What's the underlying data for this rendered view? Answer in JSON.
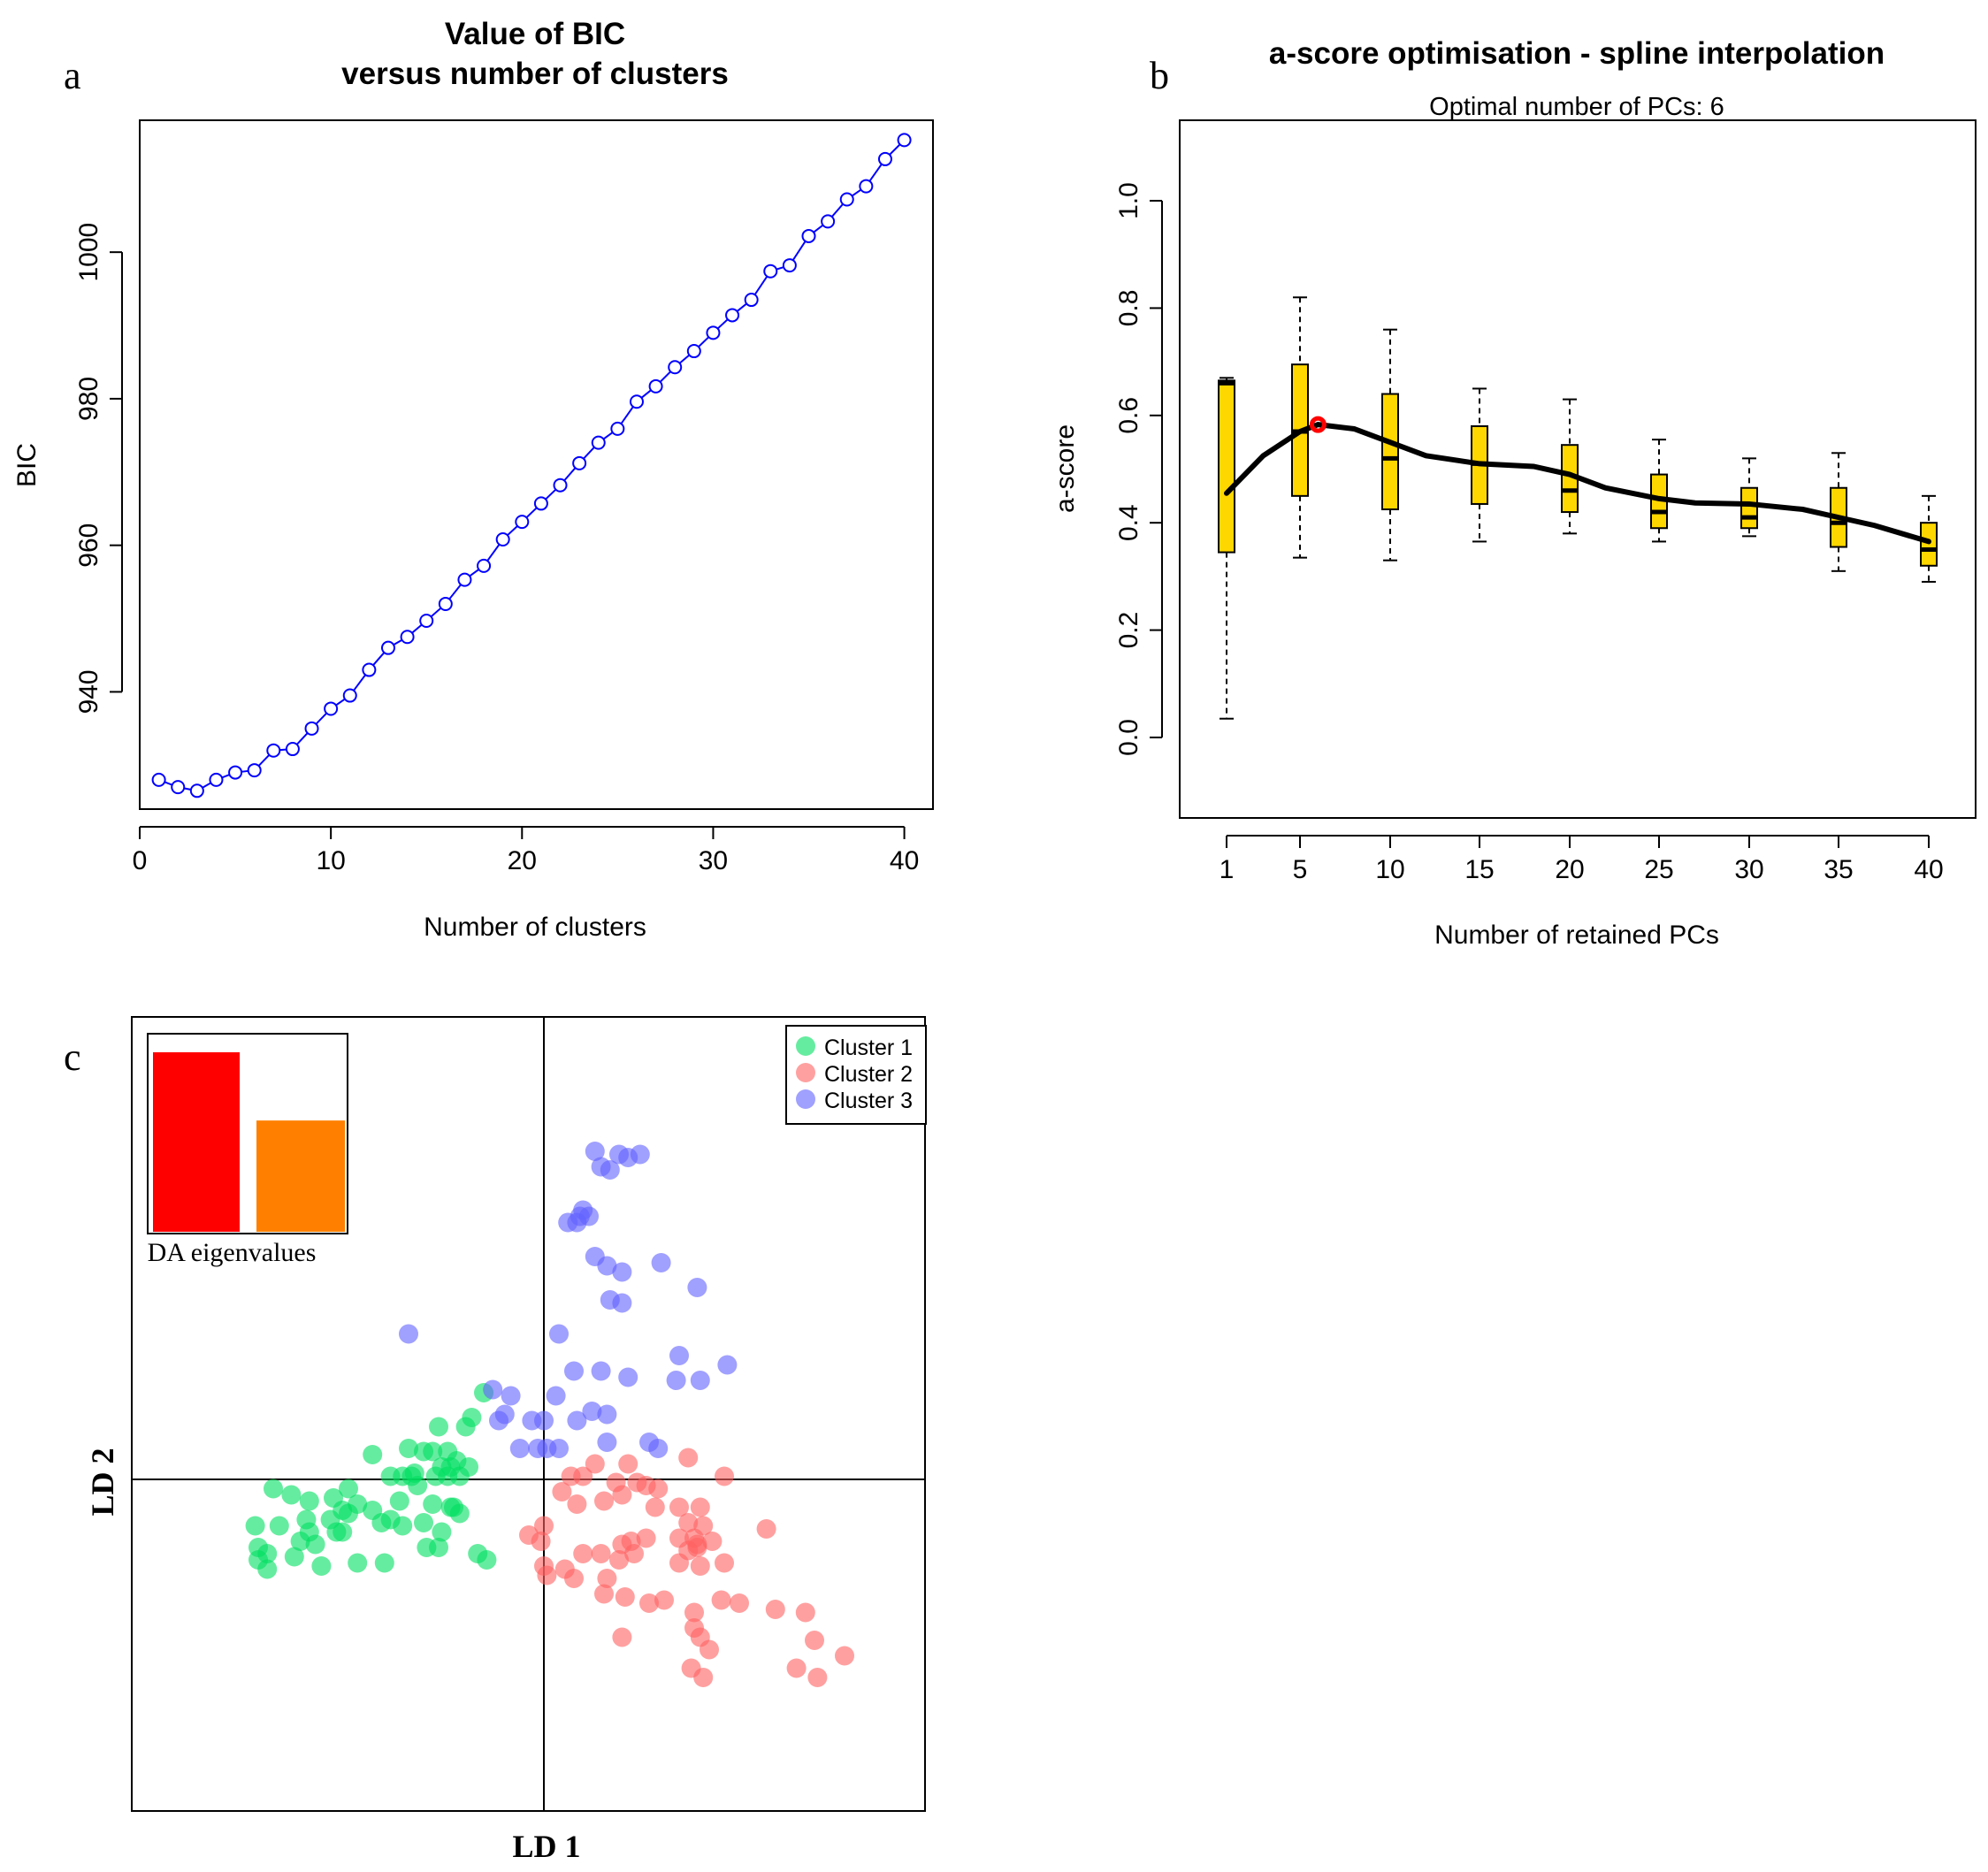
{
  "panel_labels": {
    "a": "a",
    "b": "b",
    "c": "c"
  },
  "chart_data": [
    {
      "type": "line",
      "panel": "a",
      "title_line1": "Value of BIC",
      "title_line2": "versus number of clusters",
      "xlabel": "Number of clusters",
      "ylabel": "BIC",
      "xlim": [
        0,
        41.5
      ],
      "ylim": [
        924,
        1018
      ],
      "xticks": [
        0,
        10,
        20,
        30,
        40
      ],
      "yticks": [
        940,
        960,
        980,
        1000
      ],
      "color": "#0000ff",
      "x": [
        1,
        2,
        3,
        4,
        5,
        6,
        7,
        8,
        9,
        10,
        11,
        12,
        13,
        14,
        15,
        16,
        17,
        18,
        19,
        20,
        21,
        22,
        23,
        24,
        25,
        26,
        27,
        28,
        29,
        30,
        31,
        32,
        33,
        34,
        35,
        36,
        37,
        38,
        39,
        40
      ],
      "values": [
        928,
        927,
        926.5,
        928,
        929,
        929.3,
        932,
        932.2,
        935,
        937.7,
        939.5,
        943,
        946,
        947.5,
        949.7,
        952,
        955.3,
        957.2,
        960.8,
        963.2,
        965.7,
        968.2,
        971.2,
        974,
        975.9,
        979.6,
        981.7,
        984.3,
        986.5,
        989,
        991.4,
        993.5,
        997.4,
        998.2,
        1002.2,
        1004.2,
        1007.2,
        1009,
        1012.7,
        1015.3
      ]
    },
    {
      "type": "box",
      "panel": "b",
      "title": "a-score optimisation - spline interpolation",
      "subtitle": "Optimal number of PCs: 6",
      "xlabel": "Number of retained PCs",
      "ylabel": "a-score",
      "ylim": [
        -0.15,
        1.15
      ],
      "yticks": [
        "0.0",
        "0.2",
        "0.4",
        "0.6",
        "0.8",
        "1.0"
      ],
      "box_color": "#ffd700",
      "categories": [
        "1",
        "5",
        "10",
        "15",
        "20",
        "25",
        "30",
        "35",
        "40"
      ],
      "boxes": [
        {
          "pc": 1,
          "min": 0.035,
          "q1": 0.345,
          "median": 0.66,
          "q3": 0.665,
          "max": 0.67
        },
        {
          "pc": 5,
          "min": 0.335,
          "q1": 0.45,
          "median": 0.57,
          "q3": 0.695,
          "max": 0.82
        },
        {
          "pc": 10,
          "min": 0.33,
          "q1": 0.425,
          "median": 0.52,
          "q3": 0.64,
          "max": 0.76
        },
        {
          "pc": 15,
          "min": 0.365,
          "q1": 0.435,
          "median": 0.51,
          "q3": 0.58,
          "max": 0.65
        },
        {
          "pc": 20,
          "min": 0.38,
          "q1": 0.42,
          "median": 0.46,
          "q3": 0.545,
          "max": 0.63
        },
        {
          "pc": 25,
          "min": 0.365,
          "q1": 0.39,
          "median": 0.42,
          "q3": 0.49,
          "max": 0.555
        },
        {
          "pc": 30,
          "min": 0.375,
          "q1": 0.39,
          "median": 0.41,
          "q3": 0.465,
          "max": 0.52
        },
        {
          "pc": 35,
          "min": 0.31,
          "q1": 0.355,
          "median": 0.4,
          "q3": 0.465,
          "max": 0.53
        },
        {
          "pc": 40,
          "min": 0.29,
          "q1": 0.32,
          "median": 0.35,
          "q3": 0.4,
          "max": 0.45
        }
      ],
      "spline": {
        "x": [
          1,
          3,
          5,
          6,
          8,
          10,
          12,
          15,
          18,
          20,
          22,
          25,
          27,
          30,
          33,
          35,
          37,
          40
        ],
        "y": [
          0.455,
          0.525,
          0.57,
          0.583,
          0.575,
          0.55,
          0.525,
          0.51,
          0.505,
          0.49,
          0.465,
          0.445,
          0.437,
          0.435,
          0.425,
          0.41,
          0.395,
          0.365
        ]
      },
      "optimum": {
        "x": 6,
        "y": 0.583,
        "color": "#ff0000"
      }
    },
    {
      "type": "scatter",
      "panel": "c",
      "xlabel": "LD 1",
      "ylabel": "LD 2",
      "xlim": [
        -5,
        5
      ],
      "ylim": [
        -4,
        5
      ],
      "inset": {
        "label": "DA eigenvalues",
        "values": [
          1.0,
          0.62
        ],
        "colors": [
          "#ff0000",
          "#ff8000"
        ]
      },
      "series": [
        {
          "name": "Cluster 1",
          "color": "#00e060",
          "points": [
            [
              -1.0,
              1.4
            ],
            [
              -1.2,
              1.0
            ],
            [
              -1.75,
              0.85
            ],
            [
              -1.3,
              0.85
            ],
            [
              -2.85,
              0.4
            ],
            [
              -2.25,
              0.5
            ],
            [
              -2.0,
              0.45
            ],
            [
              -1.85,
              0.45
            ],
            [
              -1.6,
              0.45
            ],
            [
              -1.45,
              0.3
            ],
            [
              -1.7,
              0.2
            ],
            [
              -1.55,
              0.2
            ],
            [
              -1.8,
              0.05
            ],
            [
              -1.25,
              0.2
            ],
            [
              -1.4,
              0.05
            ],
            [
              -1.6,
              0.05
            ],
            [
              -2.2,
              0.05
            ],
            [
              -2.35,
              0.05
            ],
            [
              -2.15,
              0.1
            ],
            [
              -2.55,
              0.05
            ],
            [
              -3.25,
              -0.15
            ],
            [
              -2.4,
              -0.35
            ],
            [
              -2.85,
              -0.5
            ],
            [
              -3.35,
              -0.5
            ],
            [
              -3.5,
              -0.3
            ],
            [
              -3.1,
              -0.4
            ],
            [
              -3.25,
              -0.55
            ],
            [
              -4.5,
              -0.15
            ],
            [
              -4.2,
              -0.25
            ],
            [
              -3.9,
              -0.35
            ],
            [
              -3.55,
              -0.65
            ],
            [
              -3.95,
              -0.65
            ],
            [
              -4.4,
              -0.75
            ],
            [
              -4.8,
              -0.75
            ],
            [
              -3.35,
              -0.85
            ],
            [
              -2.55,
              -0.65
            ],
            [
              -2.7,
              -0.7
            ],
            [
              -2.0,
              -0.7
            ],
            [
              -2.35,
              -0.75
            ],
            [
              -3.45,
              -0.85
            ],
            [
              -3.9,
              -0.85
            ],
            [
              -4.05,
              -1.0
            ],
            [
              -3.8,
              -1.05
            ],
            [
              -4.75,
              -1.1
            ],
            [
              -4.6,
              -1.2
            ],
            [
              -4.15,
              -1.25
            ],
            [
              -4.75,
              -1.3
            ],
            [
              -4.6,
              -1.45
            ],
            [
              -1.55,
              -0.45
            ],
            [
              -1.4,
              -0.55
            ],
            [
              -3.7,
              -1.4
            ],
            [
              -3.1,
              -1.35
            ],
            [
              -2.65,
              -1.35
            ],
            [
              -1.75,
              -1.1
            ],
            [
              -1.7,
              -0.85
            ],
            [
              -1.1,
              -1.2
            ],
            [
              -0.95,
              -1.3
            ],
            [
              -1.95,
              -1.1
            ],
            [
              -1.85,
              -0.4
            ],
            [
              -1.5,
              -0.45
            ],
            [
              -2.1,
              -0.1
            ]
          ]
        },
        {
          "name": "Cluster 2",
          "color": "#ff6060",
          "points": [
            [
              0.45,
              0.05
            ],
            [
              0.85,
              0.25
            ],
            [
              1.4,
              0.25
            ],
            [
              2.4,
              0.35
            ],
            [
              3.0,
              0.05
            ],
            [
              0.65,
              0.05
            ],
            [
              1.2,
              -0.05
            ],
            [
              1.55,
              -0.05
            ],
            [
              1.7,
              -0.1
            ],
            [
              1.9,
              -0.15
            ],
            [
              1.3,
              -0.25
            ],
            [
              1.0,
              -0.35
            ],
            [
              0.3,
              -0.2
            ],
            [
              0.55,
              -0.4
            ],
            [
              1.85,
              -0.45
            ],
            [
              2.25,
              -0.45
            ],
            [
              2.6,
              -0.45
            ],
            [
              2.4,
              -0.7
            ],
            [
              2.65,
              -0.75
            ],
            [
              3.7,
              -0.8
            ],
            [
              0.0,
              -0.75
            ],
            [
              -0.25,
              -0.9
            ],
            [
              -0.05,
              -1.0
            ],
            [
              1.3,
              -1.05
            ],
            [
              1.45,
              -1.0
            ],
            [
              1.7,
              -0.95
            ],
            [
              2.25,
              -0.95
            ],
            [
              2.5,
              -0.95
            ],
            [
              2.8,
              -1.0
            ],
            [
              2.55,
              -1.1
            ],
            [
              1.5,
              -1.2
            ],
            [
              2.4,
              -1.15
            ],
            [
              2.55,
              -1.05
            ],
            [
              0.95,
              -1.2
            ],
            [
              1.25,
              -1.3
            ],
            [
              0.0,
              -1.4
            ],
            [
              0.05,
              -1.55
            ],
            [
              0.65,
              -1.2
            ],
            [
              0.35,
              -1.45
            ],
            [
              1.05,
              -1.6
            ],
            [
              0.5,
              -1.6
            ],
            [
              2.25,
              -1.35
            ],
            [
              2.6,
              -1.4
            ],
            [
              3.0,
              -1.35
            ],
            [
              1.0,
              -1.85
            ],
            [
              1.35,
              -1.9
            ],
            [
              1.75,
              -2.0
            ],
            [
              2.0,
              -1.95
            ],
            [
              2.95,
              -1.95
            ],
            [
              3.25,
              -2.0
            ],
            [
              3.85,
              -2.1
            ],
            [
              4.35,
              -2.15
            ],
            [
              2.5,
              -2.15
            ],
            [
              2.5,
              -2.4
            ],
            [
              2.6,
              -2.55
            ],
            [
              1.3,
              -2.55
            ],
            [
              2.75,
              -2.75
            ],
            [
              4.5,
              -2.6
            ],
            [
              5.0,
              -2.85
            ],
            [
              4.2,
              -3.05
            ],
            [
              4.55,
              -3.2
            ],
            [
              2.45,
              -3.05
            ],
            [
              2.65,
              -3.2
            ]
          ]
        },
        {
          "name": "Cluster 3",
          "color": "#6060ff",
          "points": [
            [
              0.85,
              5.3
            ],
            [
              0.95,
              5.05
            ],
            [
              1.1,
              5.0
            ],
            [
              1.25,
              5.25
            ],
            [
              1.4,
              5.2
            ],
            [
              1.6,
              5.25
            ],
            [
              0.4,
              4.15
            ],
            [
              0.55,
              4.15
            ],
            [
              0.6,
              4.25
            ],
            [
              0.65,
              4.35
            ],
            [
              0.75,
              4.25
            ],
            [
              0.85,
              3.6
            ],
            [
              1.05,
              3.45
            ],
            [
              1.3,
              3.35
            ],
            [
              1.95,
              3.5
            ],
            [
              2.55,
              3.1
            ],
            [
              1.1,
              2.9
            ],
            [
              1.3,
              2.85
            ],
            [
              0.25,
              2.35
            ],
            [
              -2.25,
              2.35
            ],
            [
              2.25,
              2.0
            ],
            [
              0.5,
              1.75
            ],
            [
              0.95,
              1.75
            ],
            [
              1.4,
              1.65
            ],
            [
              2.2,
              1.6
            ],
            [
              2.6,
              1.6
            ],
            [
              3.05,
              1.85
            ],
            [
              -0.85,
              1.45
            ],
            [
              -0.55,
              1.35
            ],
            [
              -0.65,
              1.05
            ],
            [
              -0.75,
              0.95
            ],
            [
              -0.2,
              0.95
            ],
            [
              0.55,
              0.95
            ],
            [
              0.8,
              1.1
            ],
            [
              1.05,
              1.05
            ],
            [
              0.2,
              1.35
            ],
            [
              0.0,
              0.95
            ],
            [
              -0.4,
              0.5
            ],
            [
              -0.1,
              0.5
            ],
            [
              0.05,
              0.5
            ],
            [
              1.05,
              0.6
            ],
            [
              1.75,
              0.6
            ],
            [
              0.25,
              0.5
            ],
            [
              1.9,
              0.5
            ]
          ]
        }
      ]
    }
  ]
}
